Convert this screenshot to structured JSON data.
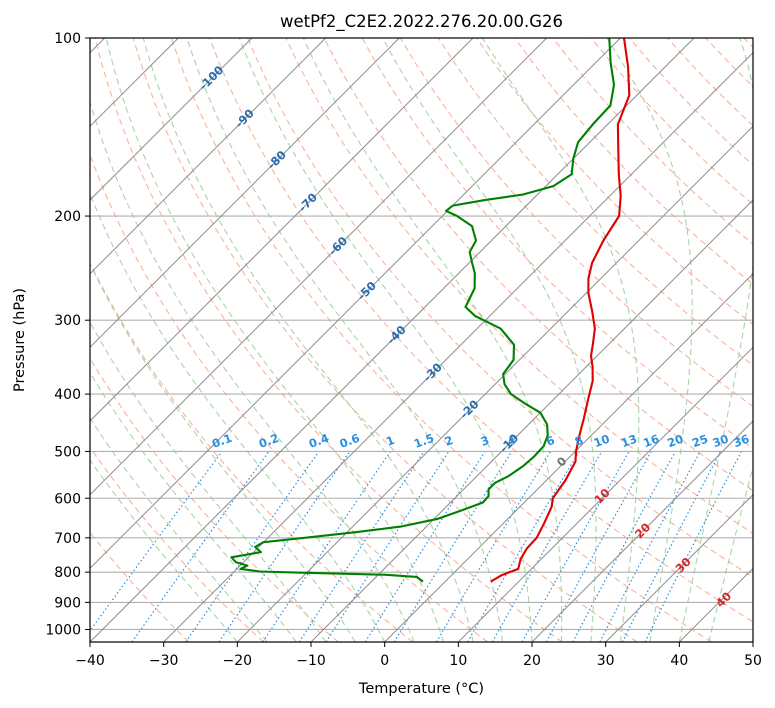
{
  "chart_data": {
    "type": "line",
    "title": "wetPf2_C2E2.2022.276.20.00.G26",
    "xlabel": "Temperature (°C)",
    "ylabel": "Pressure (hPa)",
    "xlim": [
      -40,
      50
    ],
    "ylim": [
      1050,
      100
    ],
    "y_scale": "log",
    "x_ticks": [
      "−40",
      "−30",
      "−20",
      "−10",
      "0",
      "10",
      "20",
      "30",
      "40",
      "50"
    ],
    "y_ticks": [
      "100",
      "200",
      "300",
      "400",
      "500",
      "600",
      "700",
      "800",
      "900",
      "1000"
    ],
    "grid": true,
    "skew": "45° skewed isotherms",
    "colors": {
      "temperature": "#e00000",
      "dewpoint": "#008000",
      "isotherm": "#8c8c8c",
      "dry_adiabat": "#f7b39a",
      "moist_adiabat": "#a8d4a8",
      "mixing_ratio": "#2b8fe0",
      "isotherm_label": "#2a6cb0",
      "adiabat_label": "#d62728"
    },
    "series": [
      {
        "name": "",
        "color": "#e00000",
        "points": [
          {
            "p": 830,
            "t": 6.2
          },
          {
            "p": 810,
            "t": 6.8
          },
          {
            "p": 790,
            "t": 8.2
          },
          {
            "p": 760,
            "t": 7.2
          },
          {
            "p": 730,
            "t": 6.6
          },
          {
            "p": 700,
            "t": 6.5
          },
          {
            "p": 660,
            "t": 5.5
          },
          {
            "p": 620,
            "t": 4.3
          },
          {
            "p": 600,
            "t": 3.3
          },
          {
            "p": 560,
            "t": 2.6
          },
          {
            "p": 520,
            "t": 1.4
          },
          {
            "p": 500,
            "t": 0.1
          },
          {
            "p": 470,
            "t": -1.6
          },
          {
            "p": 440,
            "t": -3.3
          },
          {
            "p": 410,
            "t": -5.2
          },
          {
            "p": 380,
            "t": -7.2
          },
          {
            "p": 360,
            "t": -9.1
          },
          {
            "p": 345,
            "t": -10.8
          },
          {
            "p": 330,
            "t": -12.1
          },
          {
            "p": 310,
            "t": -14.0
          },
          {
            "p": 290,
            "t": -16.7
          },
          {
            "p": 270,
            "t": -19.7
          },
          {
            "p": 255,
            "t": -21.7
          },
          {
            "p": 240,
            "t": -23.3
          },
          {
            "p": 220,
            "t": -24.8
          },
          {
            "p": 200,
            "t": -26.0
          },
          {
            "p": 185,
            "t": -28.5
          },
          {
            "p": 170,
            "t": -31.7
          },
          {
            "p": 155,
            "t": -35.0
          },
          {
            "p": 140,
            "t": -38.6
          },
          {
            "p": 125,
            "t": -41.0
          },
          {
            "p": 112,
            "t": -45.0
          },
          {
            "p": 100,
            "t": -49.5
          }
        ]
      },
      {
        "name": "",
        "color": "#008000",
        "points": [
          {
            "p": 830,
            "t": -3.0
          },
          {
            "p": 815,
            "t": -4.5
          },
          {
            "p": 808,
            "t": -9.2
          },
          {
            "p": 802,
            "t": -20.0
          },
          {
            "p": 798,
            "t": -26.5
          },
          {
            "p": 790,
            "t": -29.5
          },
          {
            "p": 780,
            "t": -29.0
          },
          {
            "p": 770,
            "t": -31.0
          },
          {
            "p": 755,
            "t": -32.3
          },
          {
            "p": 740,
            "t": -29.0
          },
          {
            "p": 725,
            "t": -30.5
          },
          {
            "p": 712,
            "t": -30.0
          },
          {
            "p": 700,
            "t": -25.0
          },
          {
            "p": 685,
            "t": -19.0
          },
          {
            "p": 670,
            "t": -13.5
          },
          {
            "p": 650,
            "t": -9.5
          },
          {
            "p": 630,
            "t": -7.5
          },
          {
            "p": 610,
            "t": -5.6
          },
          {
            "p": 595,
            "t": -5.7
          },
          {
            "p": 580,
            "t": -6.6
          },
          {
            "p": 565,
            "t": -6.6
          },
          {
            "p": 550,
            "t": -5.7
          },
          {
            "p": 530,
            "t": -5.1
          },
          {
            "p": 510,
            "t": -4.9
          },
          {
            "p": 490,
            "t": -5.0
          },
          {
            "p": 470,
            "t": -5.9
          },
          {
            "p": 450,
            "t": -7.5
          },
          {
            "p": 430,
            "t": -10.0
          },
          {
            "p": 415,
            "t": -13.3
          },
          {
            "p": 400,
            "t": -16.5
          },
          {
            "p": 385,
            "t": -18.7
          },
          {
            "p": 370,
            "t": -20.3
          },
          {
            "p": 350,
            "t": -20.8
          },
          {
            "p": 330,
            "t": -22.8
          },
          {
            "p": 310,
            "t": -26.8
          },
          {
            "p": 295,
            "t": -32.0
          },
          {
            "p": 285,
            "t": -34.5
          },
          {
            "p": 265,
            "t": -35.8
          },
          {
            "p": 250,
            "t": -37.8
          },
          {
            "p": 240,
            "t": -39.6
          },
          {
            "p": 230,
            "t": -41.4
          },
          {
            "p": 220,
            "t": -42.1
          },
          {
            "p": 208,
            "t": -44.6
          },
          {
            "p": 200,
            "t": -48.0
          },
          {
            "p": 196,
            "t": -50.2
          },
          {
            "p": 192,
            "t": -50.0
          },
          {
            "p": 188,
            "t": -46.5
          },
          {
            "p": 184,
            "t": -42.0
          },
          {
            "p": 178,
            "t": -39.0
          },
          {
            "p": 170,
            "t": -38.1
          },
          {
            "p": 160,
            "t": -40.0
          },
          {
            "p": 150,
            "t": -41.6
          },
          {
            "p": 140,
            "t": -42.0
          },
          {
            "p": 130,
            "t": -42.2
          },
          {
            "p": 120,
            "t": -44.5
          },
          {
            "p": 110,
            "t": -48.0
          },
          {
            "p": 100,
            "t": -51.5
          }
        ]
      }
    ],
    "isotherm_labels": [
      {
        "text": "-100",
        "t": -100,
        "p": 117
      },
      {
        "text": "-90",
        "t": -90,
        "p": 137
      },
      {
        "text": "-80",
        "t": -80,
        "p": 161
      },
      {
        "text": "-70",
        "t": -70,
        "p": 190
      },
      {
        "text": "-60",
        "t": -60,
        "p": 225
      },
      {
        "text": "-50",
        "t": -50,
        "p": 268
      },
      {
        "text": "-40",
        "t": -40,
        "p": 318
      },
      {
        "text": "-30",
        "t": -30,
        "p": 368
      },
      {
        "text": "-20",
        "t": -20,
        "p": 425
      },
      {
        "text": "-10",
        "t": -10,
        "p": 485
      }
    ],
    "mixing_ratio_labels": [
      "0.1",
      "0.2",
      "0.4",
      "0.6",
      "1",
      "1.5",
      "2",
      "3",
      "4",
      "6",
      "8",
      "10",
      "13",
      "16",
      "20",
      "25",
      "30",
      "36"
    ],
    "moist_adiabat_labels": [
      {
        "text": "0",
        "t": 0
      },
      {
        "text": "10",
        "t": 10
      },
      {
        "text": "20",
        "t": 20
      },
      {
        "text": "30",
        "t": 30
      },
      {
        "text": "40",
        "t": 40
      }
    ]
  }
}
